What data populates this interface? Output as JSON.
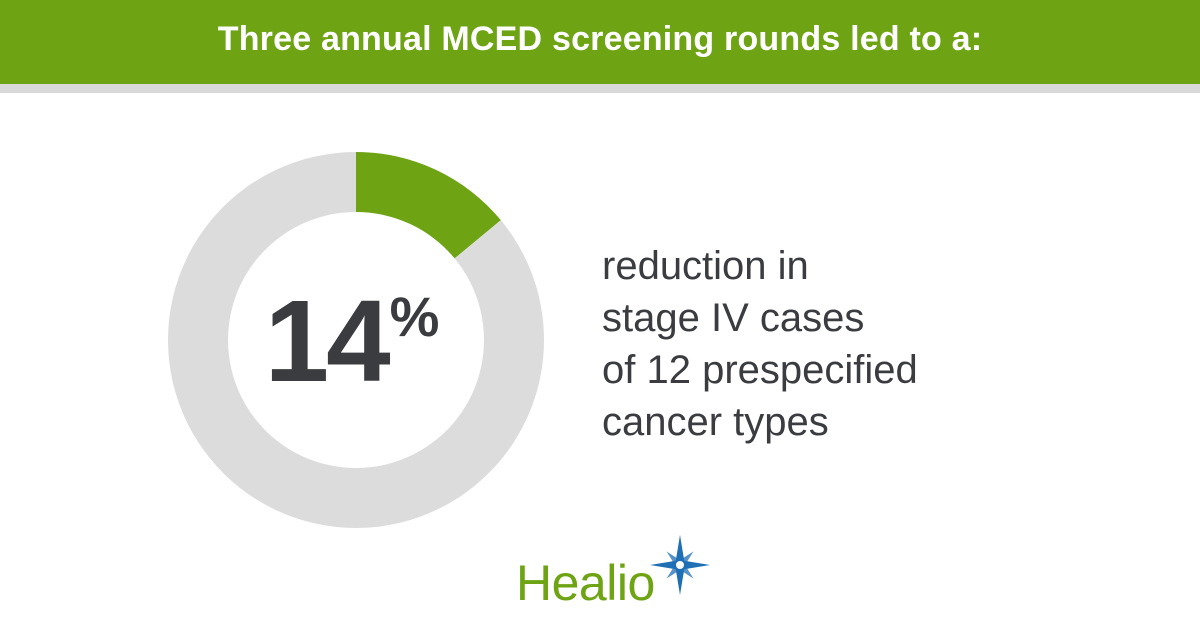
{
  "header": {
    "title": "Three annual MCED screening rounds led to a:"
  },
  "chart_data": {
    "type": "pie",
    "style": "donut",
    "value_percent": 14,
    "categories": [
      "reduction",
      "remainder"
    ],
    "values": [
      14,
      86
    ],
    "colors": {
      "highlight": "#6ea314",
      "track": "#dcdcdc"
    }
  },
  "stat": {
    "number": "14",
    "unit": "%"
  },
  "description": {
    "lines": [
      "reduction in",
      "stage IV cases",
      "of 12 prespecified",
      "cancer types"
    ]
  },
  "logo": {
    "text": "Healio",
    "colors": {
      "word": "#6ea314",
      "star": "#1f6fb5"
    }
  }
}
